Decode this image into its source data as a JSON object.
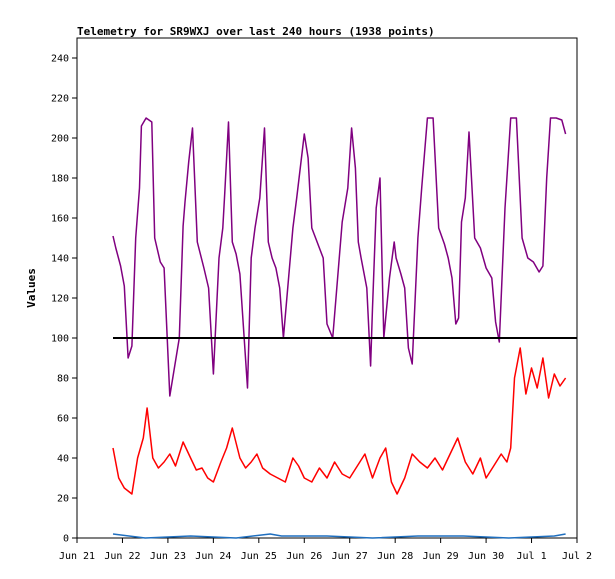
{
  "chart_data": {
    "type": "line",
    "title": "Telemetry for SR9WXJ over last 240 hours (1938 points)",
    "xlabel": "",
    "ylabel": "Values",
    "xlim": [
      "2023-06-21",
      "2023-07-02"
    ],
    "ylim": [
      0,
      250
    ],
    "x_ticks": [
      "Jun 21",
      "Jun 22",
      "Jun 23",
      "Jun 24",
      "Jun 25",
      "Jun 26",
      "Jun 27",
      "Jun 28",
      "Jun 29",
      "Jun 30",
      "Jul 1",
      "Jul 2"
    ],
    "y_ticks": [
      0,
      20,
      40,
      60,
      80,
      100,
      120,
      140,
      160,
      180,
      200,
      220,
      240
    ],
    "grid": false,
    "legend": "none",
    "series": [
      {
        "color": "#800080",
        "x": [
          "2023-06-21T19:00",
          "2023-06-21T20:30",
          "2023-06-21T23:00",
          "2023-06-22T01:00",
          "2023-06-22T03:00",
          "2023-06-22T05:00",
          "2023-06-22T07:00",
          "2023-06-22T09:00",
          "2023-06-22T10:00",
          "2023-06-22T12:30",
          "2023-06-22T15:30",
          "2023-06-22T17:00",
          "2023-06-22T20:00",
          "2023-06-22T22:00",
          "2023-06-23T01:00",
          "2023-06-23T06:00",
          "2023-06-23T08:00",
          "2023-06-23T09:00",
          "2023-06-23T11:00",
          "2023-06-23T13:00",
          "2023-06-23T15:30",
          "2023-06-23T19:00",
          "2023-06-23T21:30",
          "2023-06-24T00:00",
          "2023-06-24T03:00",
          "2023-06-24T05:00",
          "2023-06-24T06:00",
          "2023-06-24T08:00",
          "2023-06-24T10:00",
          "2023-06-24T12:00",
          "2023-06-24T14:00",
          "2023-06-24T18:00",
          "2023-06-24T20:00",
          "2023-06-24T22:00",
          "2023-06-25T00:30",
          "2023-06-25T03:00",
          "2023-06-25T05:00",
          "2023-06-25T07:00",
          "2023-06-25T09:00",
          "2023-06-25T11:00",
          "2023-06-25T13:00",
          "2023-06-25T18:00",
          "2023-06-25T20:00",
          "2023-06-26T00:00",
          "2023-06-26T02:00",
          "2023-06-26T04:00",
          "2023-06-26T06:00",
          "2023-06-26T08:00",
          "2023-06-26T10:00",
          "2023-06-26T12:00",
          "2023-06-26T15:00",
          "2023-06-26T20:00",
          "2023-06-26T23:00",
          "2023-06-27T01:00",
          "2023-06-27T03:00",
          "2023-06-27T04:30",
          "2023-06-27T06:00",
          "2023-06-27T07:00",
          "2023-06-27T09:00",
          "2023-06-27T11:00",
          "2023-06-27T12:00",
          "2023-06-27T14:00",
          "2023-06-27T16:00",
          "2023-06-27T18:00",
          "2023-06-27T21:00",
          "2023-06-27T23:30",
          "2023-06-28T00:30",
          "2023-06-28T03:00",
          "2023-06-28T05:00",
          "2023-06-28T07:00",
          "2023-06-28T09:00",
          "2023-06-28T12:00",
          "2023-06-28T14:00",
          "2023-06-28T17:00",
          "2023-06-28T20:00",
          "2023-06-28T23:00",
          "2023-06-29T02:00",
          "2023-06-29T04:00",
          "2023-06-29T06:00",
          "2023-06-29T08:00",
          "2023-06-29T09:30",
          "2023-06-29T11:00",
          "2023-06-29T13:00",
          "2023-06-29T15:00",
          "2023-06-29T18:00",
          "2023-06-29T21:00",
          "2023-06-30T00:00",
          "2023-06-30T03:00",
          "2023-06-30T05:00",
          "2023-06-30T07:00",
          "2023-06-30T10:00",
          "2023-06-30T13:00",
          "2023-06-30T16:00",
          "2023-06-30T19:00",
          "2023-06-30T22:00",
          "2023-07-01T01:00",
          "2023-07-01T04:00",
          "2023-07-01T06:00",
          "2023-07-01T08:00",
          "2023-07-01T10:00",
          "2023-07-01T13:00",
          "2023-07-01T16:00",
          "2023-07-01T18:00"
        ],
        "values": [
          151,
          145,
          136,
          126,
          90,
          96,
          150,
          175,
          206,
          210,
          208,
          150,
          138,
          135,
          71,
          100,
          156,
          168,
          188,
          205,
          148,
          135,
          125,
          82,
          140,
          155,
          172,
          208,
          148,
          142,
          132,
          75,
          140,
          155,
          170,
          205,
          148,
          140,
          135,
          125,
          100,
          155,
          170,
          202,
          190,
          155,
          150,
          145,
          140,
          107,
          100,
          158,
          175,
          205,
          185,
          148,
          140,
          135,
          125,
          86,
          115,
          165,
          180,
          100,
          130,
          148,
          140,
          132,
          125,
          95,
          87,
          150,
          175,
          210,
          210,
          155,
          147,
          140,
          130,
          107,
          110,
          158,
          170,
          203,
          150,
          145,
          135,
          130,
          108,
          98,
          165,
          210,
          210,
          150,
          140,
          138,
          133,
          136,
          180,
          210,
          210,
          209,
          202
        ]
      },
      {
        "color": "#000000",
        "x": [
          "2023-06-21T19:00",
          "2023-07-01T23:59"
        ],
        "values": [
          100,
          100
        ]
      },
      {
        "color": "#ff0000",
        "x": [
          "2023-06-21T19:00",
          "2023-06-21T22:00",
          "2023-06-22T01:00",
          "2023-06-22T05:00",
          "2023-06-22T08:00",
          "2023-06-22T11:00",
          "2023-06-22T13:00",
          "2023-06-22T16:00",
          "2023-06-22T19:00",
          "2023-06-22T22:00",
          "2023-06-23T01:00",
          "2023-06-23T04:00",
          "2023-06-23T08:00",
          "2023-06-23T12:00",
          "2023-06-23T15:00",
          "2023-06-23T18:00",
          "2023-06-23T21:00",
          "2023-06-24T00:00",
          "2023-06-24T04:00",
          "2023-06-24T07:00",
          "2023-06-24T10:00",
          "2023-06-24T14:00",
          "2023-06-24T17:00",
          "2023-06-24T20:00",
          "2023-06-24T23:00",
          "2023-06-25T02:00",
          "2023-06-25T06:00",
          "2023-06-25T10:00",
          "2023-06-25T14:00",
          "2023-06-25T18:00",
          "2023-06-25T21:00",
          "2023-06-26T00:00",
          "2023-06-26T04:00",
          "2023-06-26T08:00",
          "2023-06-26T12:00",
          "2023-06-26T16:00",
          "2023-06-26T20:00",
          "2023-06-27T00:00",
          "2023-06-27T04:00",
          "2023-06-27T08:00",
          "2023-06-27T12:00",
          "2023-06-27T16:00",
          "2023-06-27T19:00",
          "2023-06-27T22:00",
          "2023-06-28T01:00",
          "2023-06-28T05:00",
          "2023-06-28T09:00",
          "2023-06-28T13:00",
          "2023-06-28T17:00",
          "2023-06-28T21:00",
          "2023-06-29T01:00",
          "2023-06-29T05:00",
          "2023-06-29T09:00",
          "2023-06-29T13:00",
          "2023-06-29T17:00",
          "2023-06-29T21:00",
          "2023-06-30T00:00",
          "2023-06-30T04:00",
          "2023-06-30T08:00",
          "2023-06-30T11:00",
          "2023-06-30T13:00",
          "2023-06-30T15:00",
          "2023-06-30T18:00",
          "2023-06-30T21:00",
          "2023-07-01T00:00",
          "2023-07-01T03:00",
          "2023-07-01T06:00",
          "2023-07-01T09:00",
          "2023-07-01T12:00",
          "2023-07-01T15:00",
          "2023-07-01T18:00"
        ],
        "values": [
          45,
          30,
          25,
          22,
          40,
          50,
          65,
          40,
          35,
          38,
          42,
          36,
          48,
          40,
          34,
          35,
          30,
          28,
          38,
          45,
          55,
          40,
          35,
          38,
          42,
          35,
          32,
          30,
          28,
          40,
          36,
          30,
          28,
          35,
          30,
          38,
          32,
          30,
          36,
          42,
          30,
          40,
          45,
          28,
          22,
          30,
          42,
          38,
          35,
          40,
          34,
          42,
          50,
          38,
          32,
          40,
          30,
          36,
          42,
          38,
          45,
          80,
          95,
          72,
          85,
          75,
          90,
          70,
          82,
          76,
          80
        ]
      },
      {
        "color": "#1f6fbf",
        "x": [
          "2023-06-21T19:00",
          "2023-06-22T12:00",
          "2023-06-23T12:00",
          "2023-06-24T12:00",
          "2023-06-25T06:00",
          "2023-06-25T12:00",
          "2023-06-26T12:00",
          "2023-06-27T12:00",
          "2023-06-28T12:00",
          "2023-06-29T12:00",
          "2023-06-30T12:00",
          "2023-07-01T12:00",
          "2023-07-01T18:00"
        ],
        "values": [
          2,
          0,
          1,
          0,
          2,
          1,
          1,
          0,
          1,
          1,
          0,
          1,
          2
        ]
      }
    ]
  }
}
